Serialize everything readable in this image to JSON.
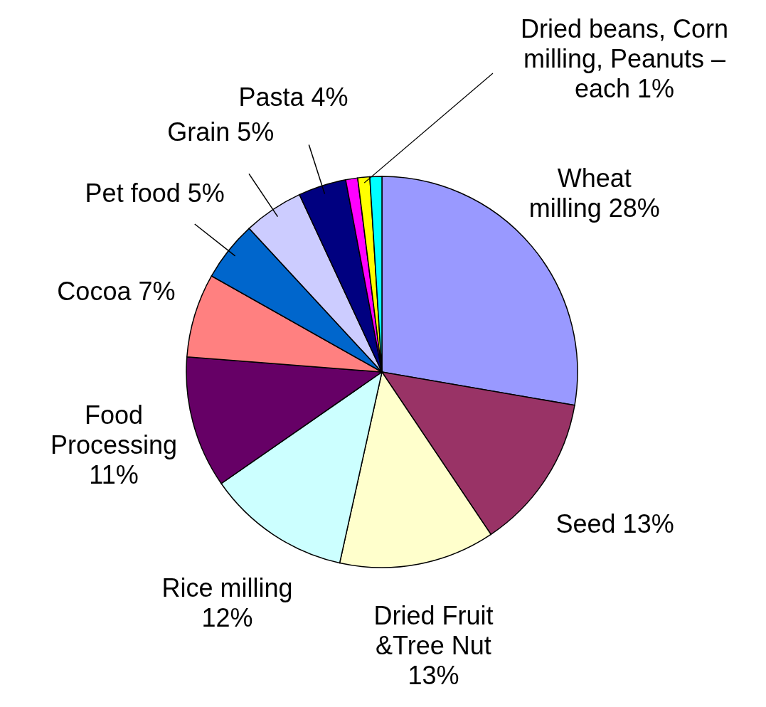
{
  "chart_data": {
    "type": "pie",
    "categories": [
      "Wheat milling 28%",
      "Seed 13%",
      "Dried Fruit &Tree Nut 13%",
      "Rice milling 12%",
      "Food Processing 11%",
      "Cocoa 7%",
      "Pet food 5%",
      "Grain 5%",
      "Pasta 4%",
      null,
      null,
      null
    ],
    "values": [
      28,
      13,
      13,
      12,
      11,
      7,
      5,
      5,
      4,
      1,
      1,
      1
    ],
    "colors": [
      "#9999ff",
      "#993366",
      "#ffffcc",
      "#ccffff",
      "#660066",
      "#ff8080",
      "#0066cc",
      "#ccccff",
      "#000080",
      "#ff00ff",
      "#ffff00",
      "#00ffff"
    ],
    "annotations": [
      {
        "text": "Dried beans, Corn milling, Peanuts – each 1%",
        "x": null
      }
    ],
    "legend": false
  }
}
